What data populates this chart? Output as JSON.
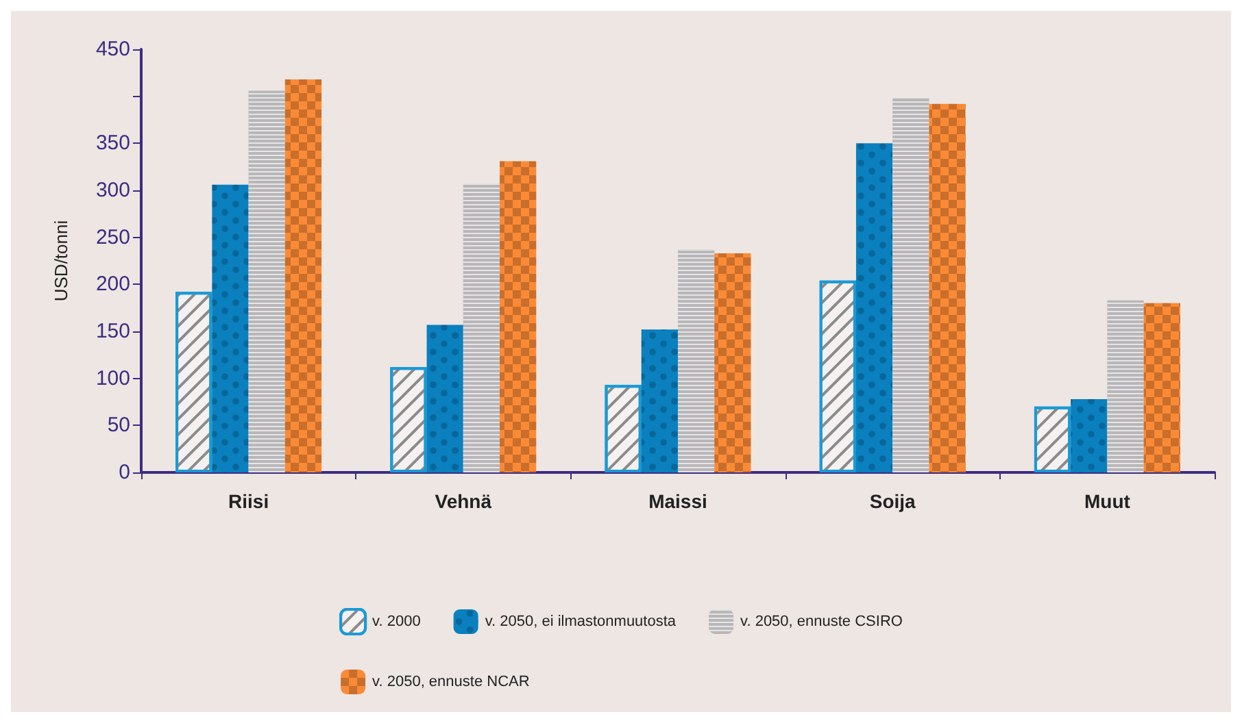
{
  "chart_data": {
    "type": "bar",
    "ylabel": "USD/tonni",
    "categories": [
      "Riisi",
      "Vehnä",
      "Maissi",
      "Soija",
      "Muut"
    ],
    "series": [
      {
        "name": "v. 2000",
        "color": "#f4f1f0",
        "values": [
          192,
          112,
          93,
          204,
          70
        ]
      },
      {
        "name": "v. 2050, ei ilmastonmuutosta",
        "color": "#0a80bf",
        "values": [
          306,
          157,
          152,
          350,
          78
        ]
      },
      {
        "name": "v. 2050, ennuste CSIRO",
        "color": "#b8b6b8",
        "values": [
          406,
          307,
          237,
          398,
          183
        ]
      },
      {
        "name": "v. 2050, ennuste NCAR",
        "color": "#fb8a36",
        "values": [
          418,
          331,
          233,
          392,
          180
        ]
      }
    ],
    "ylim": [
      0,
      450
    ],
    "yticks": [
      0,
      50,
      100,
      150,
      200,
      250,
      300,
      350,
      {
        "value": 400,
        "label": null
      },
      450
    ],
    "grid": false,
    "legend": "bottom"
  }
}
